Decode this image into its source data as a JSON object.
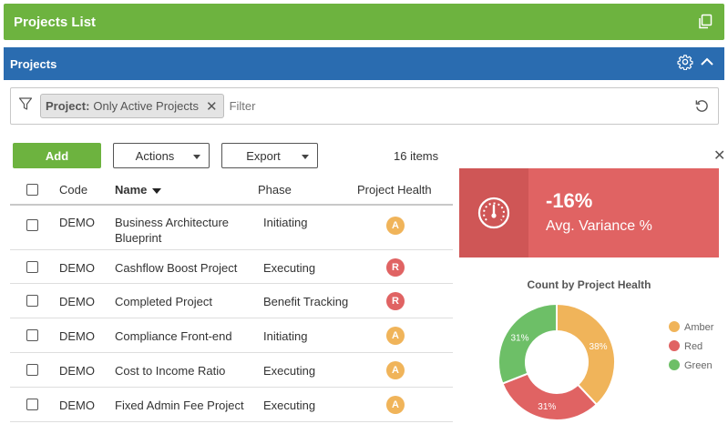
{
  "topbar": {
    "title": "Projects List",
    "icon": "copy-icon"
  },
  "panel": {
    "title": "Projects",
    "icons": [
      "gear-icon",
      "chevron-up-icon"
    ]
  },
  "filter": {
    "chip_label": "Project:",
    "chip_value": "Only Active Projects",
    "placeholder": "Filter"
  },
  "toolbar": {
    "add_label": "Add",
    "actions_label": "Actions",
    "export_label": "Export",
    "items_count": "16 items"
  },
  "table": {
    "columns": {
      "code": "Code",
      "name": "Name",
      "phase": "Phase",
      "health": "Project Health"
    },
    "rows": [
      {
        "code": "DEMO",
        "name_line1": "Business Architecture",
        "name_line2": "Blueprint",
        "phase": "Initiating",
        "health": "A"
      },
      {
        "code": "DEMO",
        "name_line1": "Cashflow Boost Project",
        "name_line2": "",
        "phase": "Executing",
        "health": "R"
      },
      {
        "code": "DEMO",
        "name_line1": "Completed Project",
        "name_line2": "",
        "phase": "Benefit Tracking",
        "health": "R"
      },
      {
        "code": "DEMO",
        "name_line1": "Compliance Front-end",
        "name_line2": "",
        "phase": "Initiating",
        "health": "A"
      },
      {
        "code": "DEMO",
        "name_line1": "Cost to Income Ratio",
        "name_line2": "",
        "phase": "Executing",
        "health": "A"
      },
      {
        "code": "DEMO",
        "name_line1": "Fixed Admin Fee Project",
        "name_line2": "",
        "phase": "Executing",
        "health": "A"
      }
    ]
  },
  "kpi": {
    "value": "-16%",
    "label": "Avg. Variance %",
    "icon": "gauge-icon",
    "color": "#e06363"
  },
  "colors": {
    "amber": "#f0b45a",
    "red": "#e06363",
    "green": "#6dbf67",
    "header_green": "#6db33f",
    "header_blue": "#2a6cb0"
  },
  "chart_data": {
    "type": "pie",
    "title": "Count by Project Health",
    "categories": [
      "Amber",
      "Red",
      "Green"
    ],
    "values": [
      38,
      31,
      31
    ],
    "value_labels": [
      "38%",
      "31%",
      "31%"
    ],
    "colors": [
      "#f0b45a",
      "#e06363",
      "#6dbf67"
    ],
    "legend": "right"
  }
}
